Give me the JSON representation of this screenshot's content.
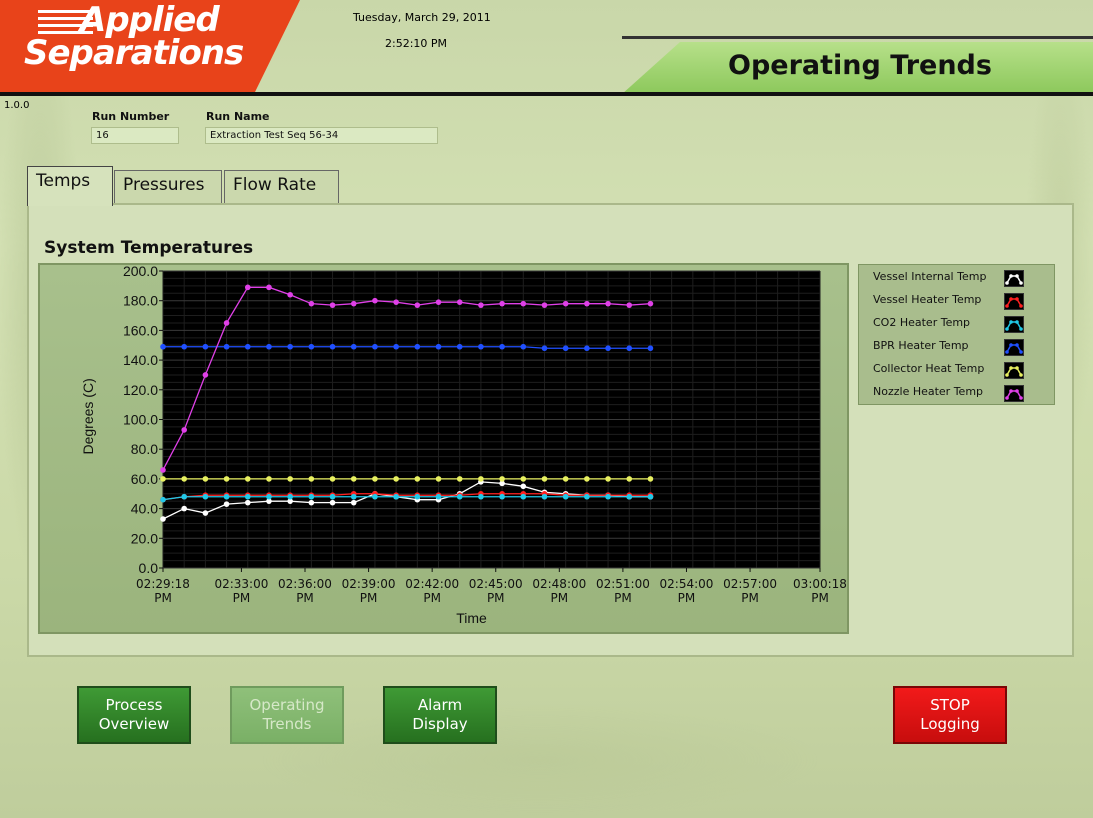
{
  "header": {
    "logo_line1": "Applied",
    "logo_line2": "Separations",
    "date": "Tuesday, March 29, 2011",
    "time": "2:52:10 PM",
    "title": "Operating Trends",
    "version": "1.0.0"
  },
  "run": {
    "number_label": "Run Number",
    "number_value": "16",
    "name_label": "Run Name",
    "name_value": "Extraction Test Seq 56-34"
  },
  "tabs": [
    {
      "label": "Temps",
      "active": true
    },
    {
      "label": "Pressures",
      "active": false
    },
    {
      "label": "Flow Rate",
      "active": false
    }
  ],
  "chart_section_title": "System Temperatures",
  "buttons": {
    "process_overview": "Process\nOverview",
    "operating_trends": "Operating\nTrends",
    "alarm_display": "Alarm\nDisplay",
    "stop_logging": "STOP\nLogging"
  },
  "chart_data": {
    "type": "line",
    "title": "System Temperatures",
    "xlabel": "Time",
    "ylabel": "Degrees (C)",
    "ylim": [
      0,
      200
    ],
    "y_ticks": [
      "0.0",
      "20.0",
      "40.0",
      "60.0",
      "80.0",
      "100.0",
      "120.0",
      "140.0",
      "160.0",
      "180.0",
      "200.0"
    ],
    "x_ticks": [
      {
        "l1": "02:29:18",
        "l2": "PM"
      },
      {
        "l1": "02:33:00",
        "l2": "PM"
      },
      {
        "l1": "02:36:00",
        "l2": "PM"
      },
      {
        "l1": "02:39:00",
        "l2": "PM"
      },
      {
        "l1": "02:42:00",
        "l2": "PM"
      },
      {
        "l1": "02:45:00",
        "l2": "PM"
      },
      {
        "l1": "02:48:00",
        "l2": "PM"
      },
      {
        "l1": "02:51:00",
        "l2": "PM"
      },
      {
        "l1": "02:54:00",
        "l2": "PM"
      },
      {
        "l1": "02:57:00",
        "l2": "PM"
      },
      {
        "l1": "03:00:18",
        "l2": "PM"
      }
    ],
    "grid": true,
    "background": "#000000",
    "legend_position": "right",
    "x_minutes": [
      0,
      1,
      2,
      3,
      4,
      5,
      6,
      7,
      8,
      9,
      10,
      11,
      12,
      13,
      14,
      15,
      16,
      17,
      18,
      19,
      20,
      21,
      22,
      23
    ],
    "series": [
      {
        "name": "Vessel Internal Temp",
        "color": "#ffffff",
        "values": [
          33,
          40,
          37,
          43,
          44,
          45,
          45,
          44,
          44,
          44,
          50,
          48,
          46,
          46,
          50,
          58,
          57,
          55,
          51,
          50,
          49,
          49,
          48,
          48
        ]
      },
      {
        "name": "Vessel Heater Temp",
        "color": "#ff2020",
        "values": [
          46,
          48,
          49,
          49,
          49,
          49,
          49,
          49,
          49,
          50,
          50,
          49,
          49,
          49,
          49,
          50,
          50,
          50,
          50,
          49,
          49,
          49,
          49,
          49
        ]
      },
      {
        "name": "CO2 Heater Temp",
        "color": "#20c8e8",
        "values": [
          46,
          48,
          48,
          48,
          48,
          48,
          48,
          48,
          48,
          48,
          48,
          48,
          48,
          48,
          48,
          48,
          48,
          48,
          48,
          48,
          48,
          48,
          48,
          48
        ]
      },
      {
        "name": "BPR Heater Temp",
        "color": "#2050ff",
        "values": [
          149,
          149,
          149,
          149,
          149,
          149,
          149,
          149,
          149,
          149,
          149,
          149,
          149,
          149,
          149,
          149,
          149,
          149,
          148,
          148,
          148,
          148,
          148,
          148
        ]
      },
      {
        "name": "Collector Heat Temp",
        "color": "#e8f060",
        "values": [
          60,
          60,
          60,
          60,
          60,
          60,
          60,
          60,
          60,
          60,
          60,
          60,
          60,
          60,
          60,
          60,
          60,
          60,
          60,
          60,
          60,
          60,
          60,
          60
        ]
      },
      {
        "name": "Nozzle Heater Temp",
        "color": "#e040e8",
        "values": [
          66,
          93,
          130,
          165,
          189,
          189,
          184,
          178,
          177,
          178,
          180,
          179,
          177,
          179,
          179,
          177,
          178,
          178,
          177,
          178,
          178,
          178,
          177,
          178
        ]
      }
    ]
  }
}
